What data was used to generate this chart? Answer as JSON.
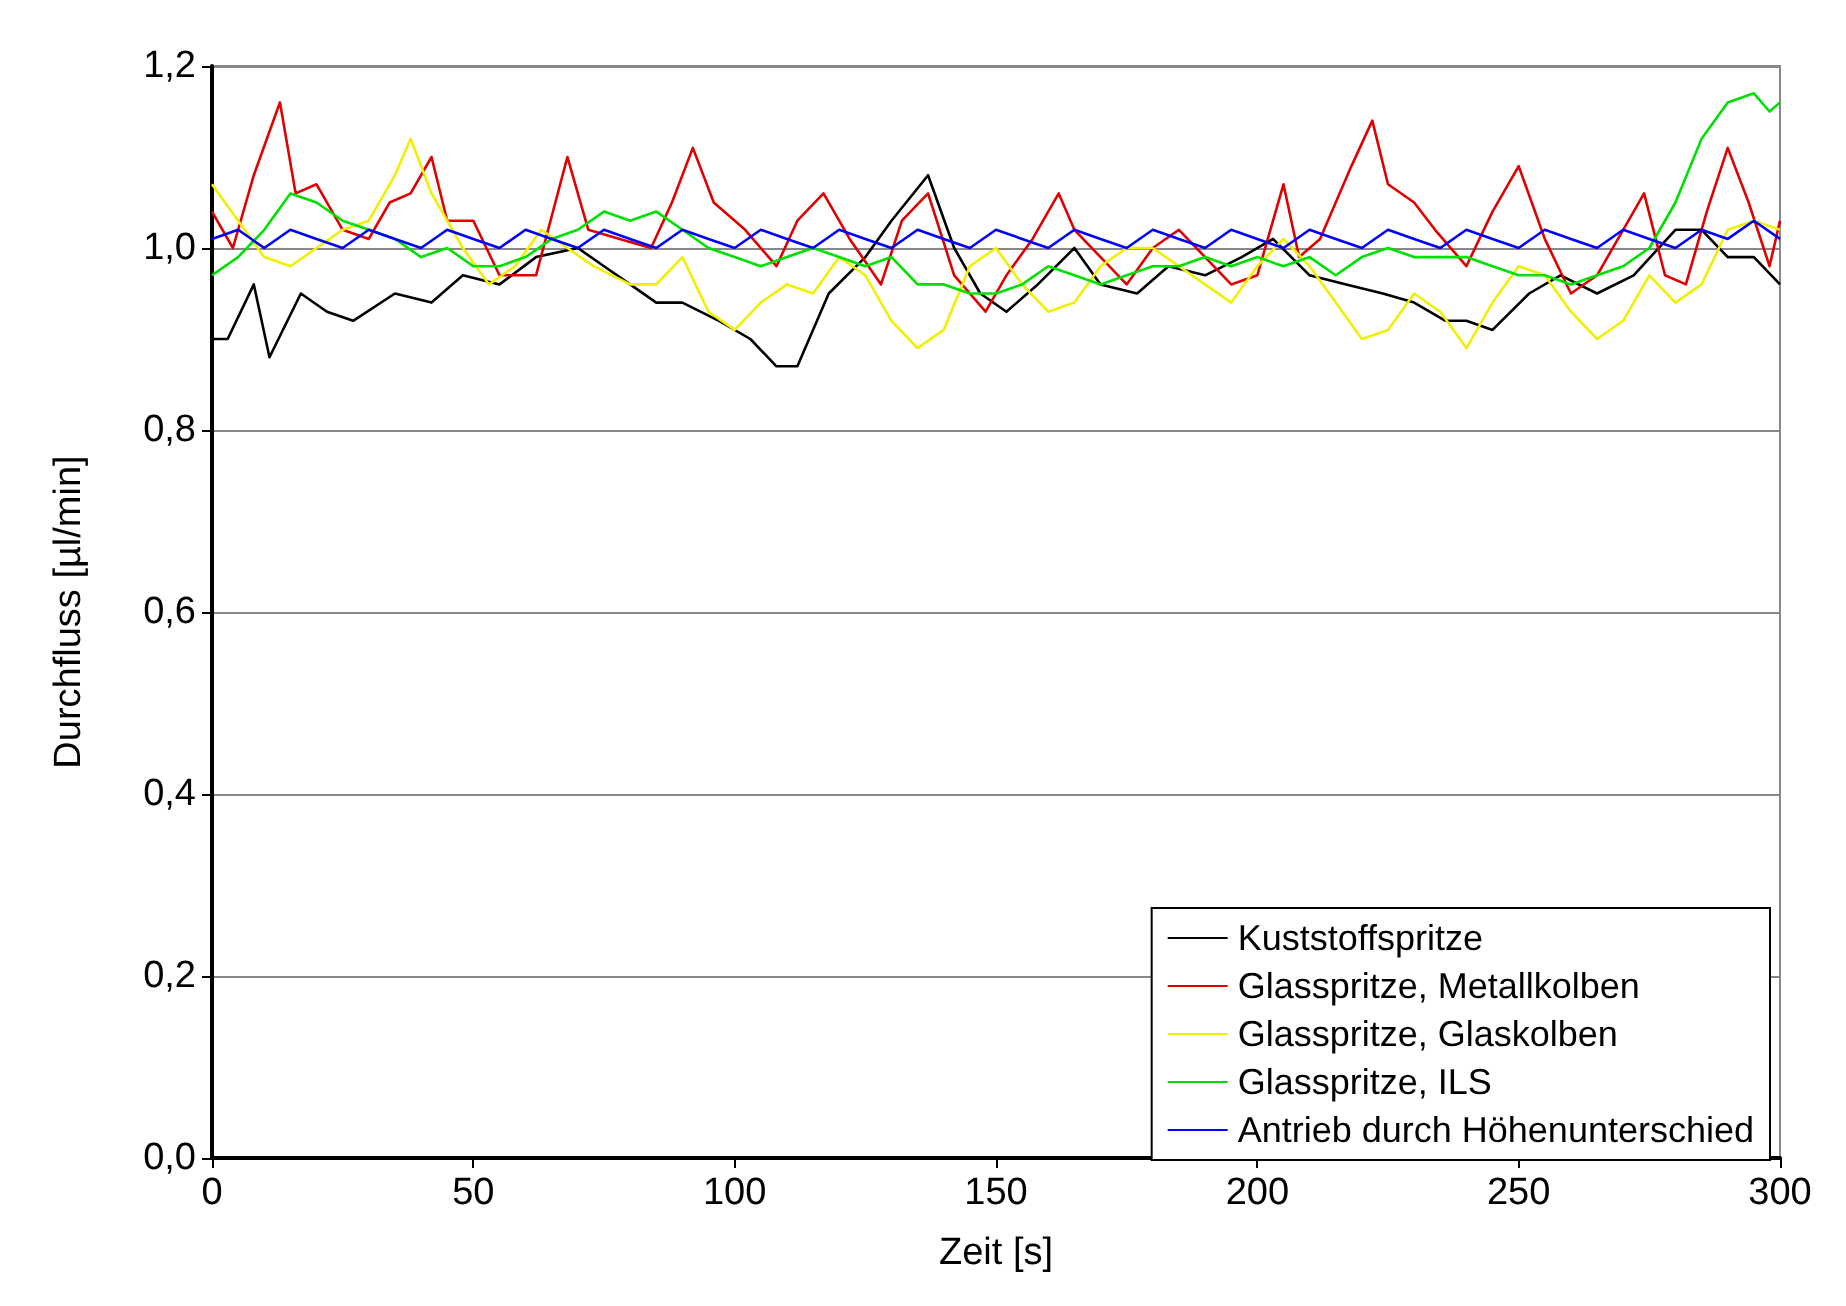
{
  "chart_data": {
    "type": "line",
    "xlabel": "Zeit [s]",
    "ylabel": "Durchfluss [µl/min]",
    "xlim": [
      0,
      300
    ],
    "xticks": [
      0,
      50,
      100,
      150,
      200,
      250,
      300
    ],
    "ylim": [
      0,
      1.2
    ],
    "yticks": [
      {
        "value": 0,
        "label": "0,0"
      },
      {
        "value": 0.2,
        "label": "0,2"
      },
      {
        "value": 0.4,
        "label": "0,4"
      },
      {
        "value": 0.6,
        "label": "0,6"
      },
      {
        "value": 0.8,
        "label": "0,8"
      },
      {
        "value": 1,
        "label": "1,0"
      },
      {
        "value": 1.2,
        "label": "1,2"
      }
    ],
    "grid": "y",
    "legend": "bottom right",
    "marker": "none",
    "line_style": "solid",
    "series": [
      {
        "name": "Kuststoffspritze",
        "color": "#000000",
        "x": [
          0,
          3,
          8,
          11,
          17,
          22,
          27,
          35,
          42,
          48,
          55,
          62,
          70,
          75,
          80,
          85,
          90,
          97,
          103,
          108,
          112,
          118,
          125,
          130,
          137,
          142,
          147,
          152,
          158,
          165,
          170,
          177,
          183,
          190,
          197,
          203,
          210,
          217,
          224,
          230,
          236,
          240,
          245,
          252,
          258,
          265,
          272,
          280,
          285,
          290,
          295,
          300
        ],
        "values": [
          0.9,
          0.9,
          0.96,
          0.88,
          0.95,
          0.93,
          0.92,
          0.95,
          0.94,
          0.97,
          0.96,
          0.99,
          1.0,
          0.98,
          0.96,
          0.94,
          0.94,
          0.92,
          0.9,
          0.87,
          0.87,
          0.95,
          0.99,
          1.03,
          1.08,
          1.0,
          0.95,
          0.93,
          0.96,
          1.0,
          0.96,
          0.95,
          0.98,
          0.97,
          0.99,
          1.01,
          0.97,
          0.96,
          0.95,
          0.94,
          0.92,
          0.92,
          0.91,
          0.95,
          0.97,
          0.95,
          0.97,
          1.02,
          1.02,
          0.99,
          0.99,
          0.96
        ]
      },
      {
        "name": "Glasspritze, Metallkolben",
        "color": "#e00000",
        "x": [
          0,
          4,
          8,
          13,
          16,
          20,
          25,
          30,
          34,
          38,
          42,
          45,
          50,
          55,
          62,
          68,
          72,
          78,
          84,
          88,
          92,
          96,
          102,
          108,
          112,
          117,
          122,
          128,
          132,
          137,
          142,
          148,
          152,
          157,
          162,
          165,
          170,
          175,
          180,
          185,
          190,
          195,
          200,
          205,
          208,
          212,
          218,
          222,
          225,
          230,
          234,
          240,
          245,
          250,
          255,
          260,
          265,
          270,
          274,
          278,
          282,
          286,
          290,
          294,
          298,
          300
        ],
        "values": [
          1.04,
          1.0,
          1.08,
          1.16,
          1.06,
          1.07,
          1.02,
          1.01,
          1.05,
          1.06,
          1.1,
          1.03,
          1.03,
          0.97,
          0.97,
          1.1,
          1.02,
          1.01,
          1.0,
          1.05,
          1.11,
          1.05,
          1.02,
          0.98,
          1.03,
          1.06,
          1.01,
          0.96,
          1.03,
          1.06,
          0.97,
          0.93,
          0.97,
          1.01,
          1.06,
          1.02,
          0.99,
          0.96,
          1.0,
          1.02,
          0.99,
          0.96,
          0.97,
          1.07,
          0.99,
          1.01,
          1.09,
          1.14,
          1.07,
          1.05,
          1.02,
          0.98,
          1.04,
          1.09,
          1.01,
          0.95,
          0.97,
          1.02,
          1.06,
          0.97,
          0.96,
          1.04,
          1.11,
          1.05,
          0.98,
          1.03
        ]
      },
      {
        "name": "Glasspritze, Glaskolben",
        "color": "#f0f000",
        "x": [
          0,
          5,
          10,
          15,
          20,
          25,
          30,
          35,
          38,
          42,
          48,
          53,
          58,
          63,
          68,
          73,
          80,
          85,
          90,
          95,
          100,
          105,
          110,
          115,
          120,
          125,
          130,
          135,
          140,
          145,
          150,
          155,
          160,
          165,
          170,
          175,
          180,
          185,
          190,
          195,
          200,
          205,
          210,
          215,
          220,
          225,
          230,
          235,
          240,
          245,
          250,
          255,
          260,
          265,
          270,
          275,
          280,
          285,
          290,
          295,
          300
        ],
        "values": [
          1.07,
          1.03,
          0.99,
          0.98,
          1.0,
          1.02,
          1.03,
          1.08,
          1.12,
          1.06,
          1.0,
          0.96,
          0.98,
          1.02,
          1.0,
          0.98,
          0.96,
          0.96,
          0.99,
          0.93,
          0.91,
          0.94,
          0.96,
          0.95,
          0.99,
          0.97,
          0.92,
          0.89,
          0.91,
          0.98,
          1.0,
          0.96,
          0.93,
          0.94,
          0.98,
          1.0,
          1.0,
          0.98,
          0.96,
          0.94,
          0.98,
          1.01,
          0.98,
          0.94,
          0.9,
          0.91,
          0.95,
          0.93,
          0.89,
          0.94,
          0.98,
          0.97,
          0.93,
          0.9,
          0.92,
          0.97,
          0.94,
          0.96,
          1.02,
          1.03,
          1.02
        ]
      },
      {
        "name": "Glasspritze, ILS",
        "color": "#00e000",
        "x": [
          0,
          5,
          10,
          15,
          20,
          25,
          30,
          35,
          40,
          45,
          50,
          55,
          60,
          65,
          70,
          75,
          80,
          85,
          90,
          95,
          100,
          105,
          110,
          115,
          120,
          125,
          130,
          135,
          140,
          145,
          150,
          155,
          160,
          165,
          170,
          175,
          180,
          185,
          190,
          195,
          200,
          205,
          210,
          215,
          220,
          225,
          230,
          235,
          240,
          245,
          250,
          255,
          260,
          265,
          270,
          275,
          280,
          285,
          290,
          295,
          298,
          300
        ],
        "values": [
          0.97,
          0.99,
          1.02,
          1.06,
          1.05,
          1.03,
          1.02,
          1.01,
          0.99,
          1.0,
          0.98,
          0.98,
          0.99,
          1.01,
          1.02,
          1.04,
          1.03,
          1.04,
          1.02,
          1.0,
          0.99,
          0.98,
          0.99,
          1.0,
          0.99,
          0.98,
          0.99,
          0.96,
          0.96,
          0.95,
          0.95,
          0.96,
          0.98,
          0.97,
          0.96,
          0.97,
          0.98,
          0.98,
          0.99,
          0.98,
          0.99,
          0.98,
          0.99,
          0.97,
          0.99,
          1.0,
          0.99,
          0.99,
          0.99,
          0.98,
          0.97,
          0.97,
          0.96,
          0.97,
          0.98,
          1.0,
          1.05,
          1.12,
          1.16,
          1.17,
          1.15,
          1.16
        ]
      },
      {
        "name": "Antrieb durch Höhenunterschied",
        "color": "#0000ff",
        "x": [
          0,
          5,
          10,
          15,
          20,
          25,
          30,
          35,
          40,
          45,
          50,
          55,
          60,
          65,
          70,
          75,
          80,
          85,
          90,
          95,
          100,
          105,
          110,
          115,
          120,
          125,
          130,
          135,
          140,
          145,
          150,
          155,
          160,
          165,
          170,
          175,
          180,
          185,
          190,
          195,
          200,
          205,
          210,
          215,
          220,
          225,
          230,
          235,
          240,
          245,
          250,
          255,
          260,
          265,
          270,
          275,
          280,
          285,
          290,
          295,
          300
        ],
        "values": [
          1.01,
          1.02,
          1.0,
          1.02,
          1.01,
          1.0,
          1.02,
          1.01,
          1.0,
          1.02,
          1.01,
          1.0,
          1.02,
          1.01,
          1.0,
          1.02,
          1.01,
          1.0,
          1.02,
          1.01,
          1.0,
          1.02,
          1.01,
          1.0,
          1.02,
          1.01,
          1.0,
          1.02,
          1.01,
          1.0,
          1.02,
          1.01,
          1.0,
          1.02,
          1.01,
          1.0,
          1.02,
          1.01,
          1.0,
          1.02,
          1.01,
          1.0,
          1.02,
          1.01,
          1.0,
          1.02,
          1.01,
          1.0,
          1.02,
          1.01,
          1.0,
          1.02,
          1.01,
          1.0,
          1.02,
          1.01,
          1.0,
          1.02,
          1.01,
          1.03,
          1.01
        ]
      }
    ]
  }
}
